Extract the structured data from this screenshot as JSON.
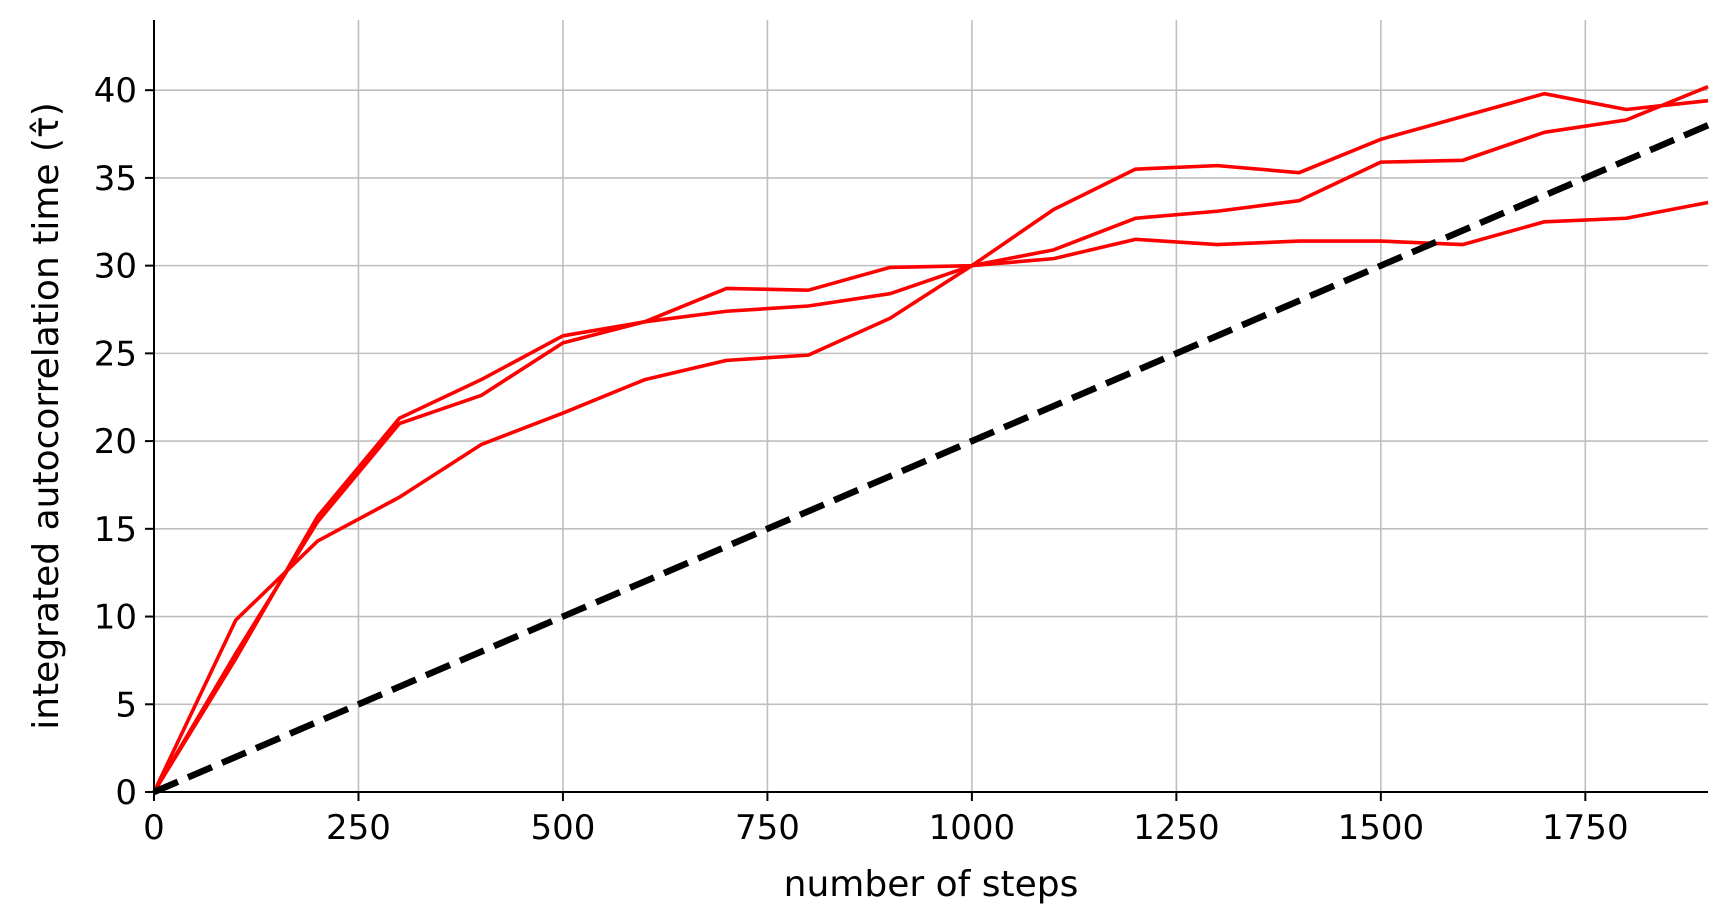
{
  "chart_data": {
    "type": "line",
    "title": "",
    "xlabel": "number of steps",
    "ylabel": "integrated autocorrelation time (τ̂)",
    "xlim": [
      0,
      1900
    ],
    "ylim": [
      0,
      44
    ],
    "x_ticks": [
      0,
      250,
      500,
      750,
      1000,
      1250,
      1500,
      1750
    ],
    "y_ticks": [
      0,
      5,
      10,
      15,
      20,
      25,
      30,
      35,
      40
    ],
    "grid": true,
    "legend": "none",
    "series": [
      {
        "color": "#ff0000",
        "style": "solid",
        "x": [
          0,
          100,
          200,
          300,
          400,
          500,
          600,
          700,
          800,
          900,
          1000,
          1100,
          1200,
          1300,
          1400,
          1500,
          1600,
          1700,
          1800,
          1900
        ],
        "y": [
          0,
          7.6,
          15.7,
          21.3,
          23.5,
          26.0,
          26.8,
          27.4,
          27.7,
          28.4,
          30.0,
          30.9,
          32.7,
          33.1,
          33.7,
          35.9,
          36.0,
          37.6,
          38.3,
          40.2
        ]
      },
      {
        "color": "#ff0000",
        "style": "solid",
        "x": [
          0,
          100,
          200,
          300,
          400,
          500,
          600,
          700,
          800,
          900,
          1000,
          1100,
          1200,
          1300,
          1400,
          1500,
          1600,
          1700,
          1800,
          1900
        ],
        "y": [
          0,
          9.8,
          14.3,
          16.8,
          19.8,
          21.6,
          23.5,
          24.6,
          24.9,
          27.0,
          30.0,
          33.2,
          35.5,
          35.7,
          35.3,
          37.2,
          38.5,
          39.8,
          38.9,
          39.4
        ]
      },
      {
        "color": "#ff0000",
        "style": "solid",
        "x": [
          0,
          100,
          200,
          300,
          400,
          500,
          600,
          700,
          800,
          900,
          1000,
          1100,
          1200,
          1300,
          1400,
          1500,
          1600,
          1700,
          1800,
          1900
        ],
        "y": [
          0,
          7.9,
          15.4,
          21.0,
          22.6,
          25.6,
          26.8,
          28.7,
          28.6,
          29.9,
          30.0,
          30.4,
          31.5,
          31.2,
          31.4,
          31.4,
          31.2,
          32.5,
          32.7,
          33.6
        ]
      },
      {
        "color": "#000000",
        "style": "dashed",
        "x": [
          0,
          1900
        ],
        "y": [
          0,
          38
        ]
      }
    ]
  }
}
